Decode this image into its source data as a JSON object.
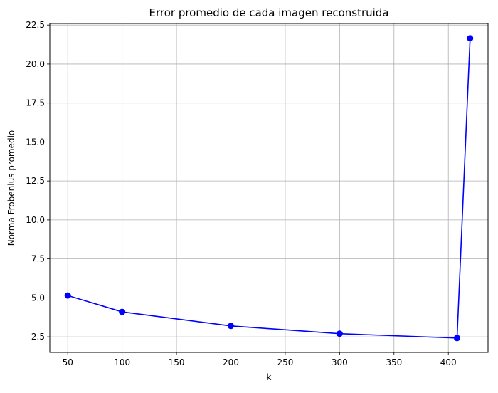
{
  "chart_data": {
    "type": "line",
    "title": "Error promedio de cada imagen reconstruida",
    "xlabel": "k",
    "ylabel": "Norma Frobenius promedio",
    "xlim": [
      33.5,
      436.5
    ],
    "ylim": [
      1.5,
      22.6
    ],
    "xticks": [
      50,
      100,
      150,
      200,
      250,
      300,
      350,
      400
    ],
    "yticks": [
      2.5,
      5.0,
      7.5,
      10.0,
      12.5,
      15.0,
      17.5,
      20.0,
      22.5
    ],
    "xtick_labels": [
      "50",
      "100",
      "150",
      "200",
      "250",
      "300",
      "350",
      "400"
    ],
    "ytick_labels": [
      "2.5",
      "5.0",
      "7.5",
      "10.0",
      "12.5",
      "15.0",
      "17.5",
      "20.0",
      "22.5"
    ],
    "grid": true,
    "legend": "none",
    "series": [
      {
        "color": "#0000ff",
        "marker": "circle",
        "x": [
          50,
          100,
          200,
          300,
          408,
          420
        ],
        "y": [
          5.15,
          4.1,
          3.2,
          2.7,
          2.42,
          21.65
        ]
      }
    ]
  }
}
